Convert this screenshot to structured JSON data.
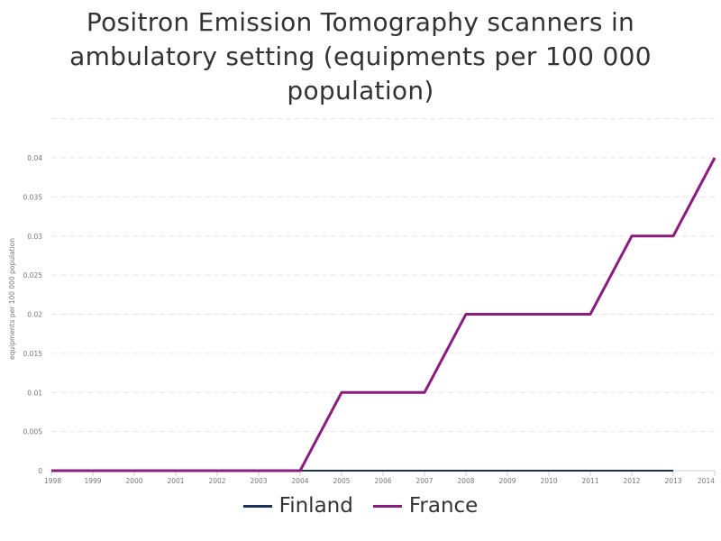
{
  "chart_data": {
    "type": "line",
    "title_lines": [
      "Positron Emission Tomography scanners in",
      "ambulatory setting (equipments per 100 000",
      "population)"
    ],
    "ylabel": "equipments per 100 000 population",
    "xlabel": "",
    "x": [
      "1998",
      "1999",
      "2000",
      "2001",
      "2002",
      "2003",
      "2004",
      "2005",
      "2006",
      "2007",
      "2008",
      "2009",
      "2010",
      "2011",
      "2012",
      "2013",
      "2014"
    ],
    "ylim": [
      0,
      0.04
    ],
    "yticks": [
      "0",
      "0.005",
      "0.01",
      "0.015",
      "0.02",
      "0.025",
      "0.03",
      "0.035",
      "0.04"
    ],
    "grid": true,
    "legend_position": "bottom",
    "series": [
      {
        "name": "Finland",
        "color": "#1c3257",
        "values": [
          0,
          0,
          0,
          0,
          0,
          0,
          0,
          0,
          0,
          0,
          0,
          0,
          0,
          0,
          0,
          0,
          null
        ]
      },
      {
        "name": "France",
        "color": "#8b1c7f",
        "values": [
          0,
          0,
          0,
          0,
          0,
          0,
          0,
          0.01,
          0.01,
          0.01,
          0.02,
          0.02,
          0.02,
          0.02,
          0.03,
          0.03,
          0.04
        ]
      }
    ]
  }
}
